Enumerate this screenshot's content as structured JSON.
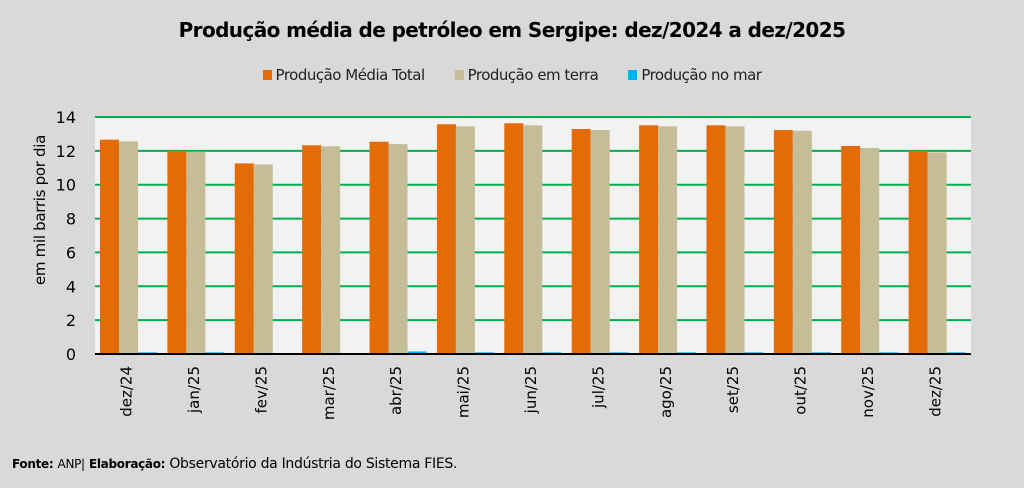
{
  "chart_data": {
    "type": "bar",
    "title": "Produção média de petróleo em Sergipe: dez/2024 a dez/2025",
    "xlabel": "",
    "ylabel": "em mil barris por dia",
    "ylim": [
      0,
      14
    ],
    "yticks": [
      0,
      2,
      4,
      6,
      8,
      10,
      12,
      14
    ],
    "grid": true,
    "legend_position": "top",
    "categories": [
      "dez/24",
      "jan/25",
      "fev/25",
      "mar/25",
      "abr/25",
      "mai/25",
      "jun/25",
      "jul/25",
      "ago/25",
      "set/25",
      "out/25",
      "nov/25",
      "dez/25"
    ],
    "series": [
      {
        "name": "Produção Média Total",
        "color": "#e36c09",
        "values": [
          12.66,
          12.01,
          11.26,
          12.33,
          12.54,
          13.57,
          13.63,
          13.29,
          13.51,
          13.51,
          13.23,
          12.29,
          12.01
        ]
      },
      {
        "name": "Produção em terra",
        "color": "#c4bd97",
        "values": [
          12.56,
          11.95,
          11.2,
          12.27,
          12.4,
          13.45,
          13.51,
          13.23,
          13.45,
          13.45,
          13.19,
          12.17,
          11.91
        ]
      },
      {
        "name": "Produção no mar",
        "color": "#00b0f0",
        "values": [
          0.1,
          0.1,
          0.0,
          0.0,
          0.15,
          0.1,
          0.1,
          0.1,
          0.1,
          0.1,
          0.1,
          0.1,
          0.1
        ]
      }
    ]
  },
  "colors": {
    "gridline": "#00b050",
    "plot_background": "#f2f2f2",
    "page_background": "#d9d9d9"
  },
  "footer": {
    "source_label": "Fonte:",
    "source_value": "ANP|",
    "credit_label": "Elaboração:",
    "credit_value": "Observatório da Indústria do Sistema FIES."
  }
}
